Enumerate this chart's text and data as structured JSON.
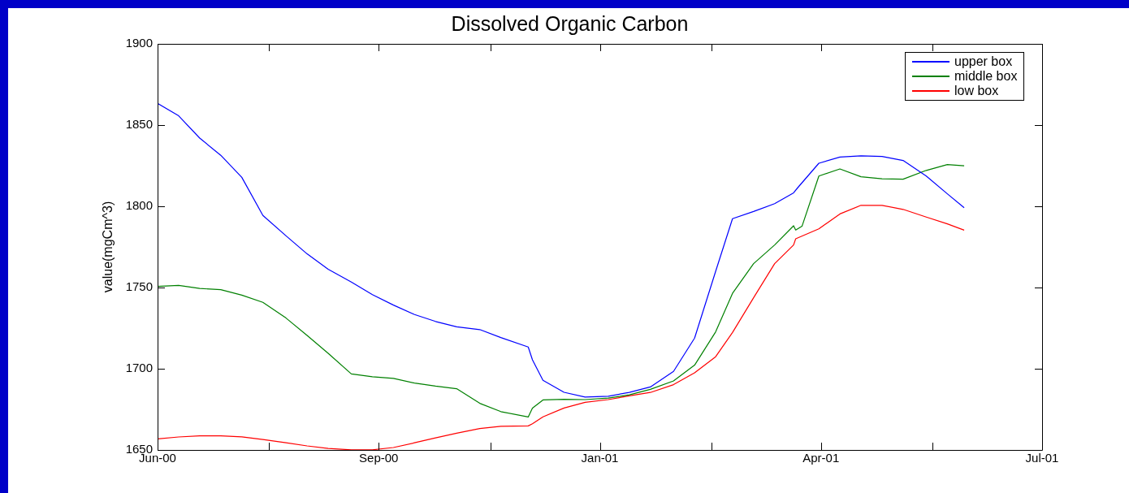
{
  "chart_data": {
    "type": "line",
    "title": "Dissolved Organic Carbon",
    "ylabel": "value(mgCm^3)",
    "xlim": [
      "2000-06-05",
      "2001-07-30"
    ],
    "xticks": [
      {
        "value": "2000-06-05",
        "label": "Jun-00"
      },
      {
        "value": "2000-07-28",
        "label": null
      },
      {
        "value": "2000-09-18",
        "label": "Sep-00"
      },
      {
        "value": "2000-11-10",
        "label": null
      },
      {
        "value": "2001-01-01",
        "label": "Jan-01"
      },
      {
        "value": "2001-02-23",
        "label": null
      },
      {
        "value": "2001-04-16",
        "label": "Apr-01"
      },
      {
        "value": "2001-06-08",
        "label": null
      },
      {
        "value": "2001-07-30",
        "label": "Jul-01"
      }
    ],
    "ylim": [
      1650,
      1900
    ],
    "yticks": [
      1650,
      1700,
      1750,
      1800,
      1850,
      1900
    ],
    "legend": "top right",
    "marker": "none",
    "line_style": "solid",
    "series": [
      {
        "name": "upper box",
        "color": "#0000ff",
        "x": [
          "2000-06-05",
          "2000-06-15",
          "2000-06-25",
          "2000-07-05",
          "2000-07-15",
          "2000-07-25",
          "2000-08-05",
          "2000-08-15",
          "2000-08-25",
          "2000-09-05",
          "2000-09-15",
          "2000-09-25",
          "2000-10-05",
          "2000-10-15",
          "2000-10-25",
          "2000-11-05",
          "2000-11-15",
          "2000-11-28",
          "2000-11-30",
          "2000-12-05",
          "2000-12-15",
          "2000-12-25",
          "2001-01-05",
          "2001-01-15",
          "2001-01-25",
          "2001-02-05",
          "2001-02-15",
          "2001-02-25",
          "2001-03-05",
          "2001-03-15",
          "2001-03-25",
          "2001-04-03",
          "2001-04-05",
          "2001-04-15",
          "2001-04-25",
          "2001-05-05",
          "2001-05-15",
          "2001-05-25",
          "2001-06-05",
          "2001-06-15",
          "2001-06-23"
        ],
        "values": [
          1863.4,
          1855.7,
          1842,
          1831.4,
          1817.8,
          1794.4,
          1781.8,
          1770.7,
          1761.3,
          1753.4,
          1745.6,
          1739.2,
          1733.4,
          1729.1,
          1725.8,
          1724.1,
          1719.2,
          1713.4,
          1705.5,
          1692.9,
          1685.5,
          1682.6,
          1683.1,
          1685.4,
          1688.8,
          1698.4,
          1718.9,
          1760,
          1792.4,
          1796.8,
          1801.6,
          1808.3,
          1811.5,
          1826.5,
          1830.3,
          1831.1,
          1830.7,
          1828.2,
          1818.6,
          1807.7,
          1799.1
        ]
      },
      {
        "name": "middle box",
        "color": "#008000",
        "x": [
          "2000-06-05",
          "2000-06-15",
          "2000-06-25",
          "2000-07-05",
          "2000-07-15",
          "2000-07-25",
          "2000-08-05",
          "2000-08-15",
          "2000-08-25",
          "2000-09-05",
          "2000-09-15",
          "2000-09-25",
          "2000-10-05",
          "2000-10-15",
          "2000-10-25",
          "2000-11-05",
          "2000-11-15",
          "2000-11-28",
          "2000-11-30",
          "2000-12-05",
          "2000-12-15",
          "2000-12-25",
          "2001-01-05",
          "2001-01-15",
          "2001-01-25",
          "2001-02-05",
          "2001-02-15",
          "2001-02-25",
          "2001-03-05",
          "2001-03-15",
          "2001-03-25",
          "2001-04-03",
          "2001-04-04",
          "2001-04-07",
          "2001-04-15",
          "2001-04-25",
          "2001-05-05",
          "2001-05-15",
          "2001-05-25",
          "2001-06-05",
          "2001-06-15",
          "2001-06-23"
        ],
        "values": [
          1750.7,
          1751.3,
          1749.4,
          1748.7,
          1745.3,
          1740.9,
          1731.2,
          1720.5,
          1709.5,
          1696.8,
          1695.1,
          1694.1,
          1691.2,
          1689.3,
          1687.7,
          1678.7,
          1673.6,
          1670.3,
          1675.8,
          1680.8,
          1681.2,
          1681,
          1681.9,
          1683.9,
          1687.3,
          1692.5,
          1702.2,
          1722.7,
          1746.4,
          1764.7,
          1776.2,
          1788,
          1785.4,
          1787.7,
          1818.6,
          1823,
          1818.2,
          1816.9,
          1816.7,
          1822.1,
          1825.7,
          1824.9
        ]
      },
      {
        "name": "low box",
        "color": "#ff0000",
        "x": [
          "2000-06-05",
          "2000-06-15",
          "2000-06-25",
          "2000-07-05",
          "2000-07-15",
          "2000-07-25",
          "2000-08-05",
          "2000-08-15",
          "2000-08-25",
          "2000-09-05",
          "2000-09-15",
          "2000-09-25",
          "2000-10-05",
          "2000-10-15",
          "2000-10-25",
          "2000-11-05",
          "2000-11-15",
          "2000-11-28",
          "2000-11-30",
          "2000-12-05",
          "2000-12-15",
          "2000-12-25",
          "2001-01-05",
          "2001-01-15",
          "2001-01-25",
          "2001-02-05",
          "2001-02-15",
          "2001-02-25",
          "2001-03-05",
          "2001-03-15",
          "2001-03-25",
          "2001-04-03",
          "2001-04-04",
          "2001-04-15",
          "2001-04-25",
          "2001-05-05",
          "2001-05-15",
          "2001-05-25",
          "2001-06-05",
          "2001-06-15",
          "2001-06-23"
        ],
        "values": [
          1656.8,
          1658,
          1658.7,
          1658.7,
          1658.1,
          1656.4,
          1654.4,
          1652.5,
          1650.9,
          1650.1,
          1650.1,
          1651.5,
          1654.4,
          1657.4,
          1660.3,
          1663.2,
          1664.6,
          1664.8,
          1666.1,
          1670.4,
          1675.8,
          1679.3,
          1681,
          1683.3,
          1685.4,
          1690.2,
          1697.5,
          1707.4,
          1722.3,
          1743.7,
          1764.7,
          1776.2,
          1780,
          1786.1,
          1795.3,
          1800.6,
          1800.6,
          1798.1,
          1793.4,
          1789.2,
          1785.3
        ]
      }
    ]
  }
}
